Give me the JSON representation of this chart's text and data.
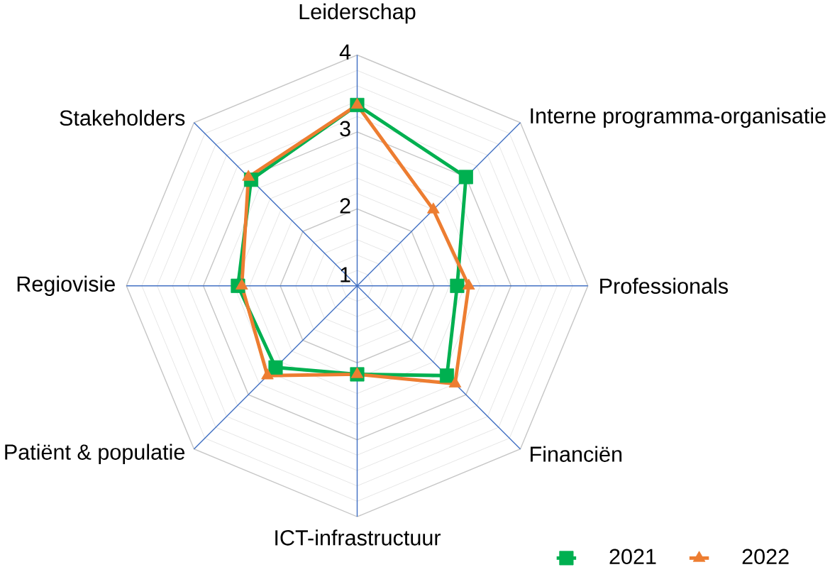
{
  "chart_data": {
    "type": "radar",
    "categories": [
      "Leiderschap",
      "Interne programma-organisatie",
      "Professionals",
      "Financiën",
      "ICT-infrastructuur",
      "Patiënt & populatie",
      "Regiovisie",
      "Stakeholders"
    ],
    "ylim": [
      1,
      4
    ],
    "yticks": [
      1,
      2,
      3,
      4
    ],
    "grid": true,
    "legend": "bottom right",
    "series": [
      {
        "name": "2021",
        "color": "#00b050",
        "marker": "square",
        "values": [
          3.35,
          3.0,
          2.3,
          2.65,
          2.15,
          2.5,
          2.55,
          2.95
        ]
      },
      {
        "name": "2022",
        "color": "#ed7d31",
        "marker": "triangle",
        "values": [
          3.35,
          2.4,
          2.45,
          2.8,
          2.15,
          2.65,
          2.5,
          3.0
        ]
      }
    ]
  }
}
